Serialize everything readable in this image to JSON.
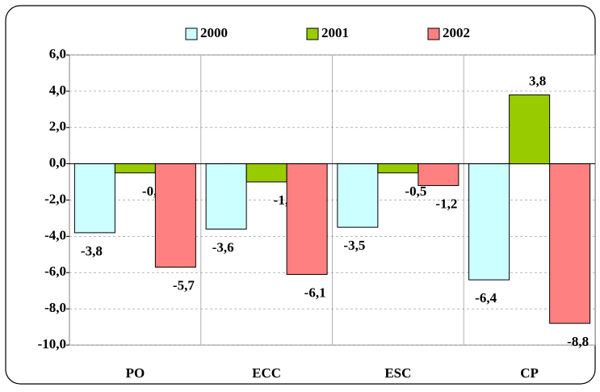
{
  "chart_data": {
    "type": "bar",
    "categories": [
      "PO",
      "ECC",
      "ESC",
      "CP"
    ],
    "series": [
      {
        "name": "2000",
        "color": "#ccffff",
        "values": [
          -3.8,
          -3.6,
          -3.5,
          -6.4
        ],
        "value_labels": [
          "-3,8",
          "-3,6",
          "-3,5",
          "-6,4"
        ]
      },
      {
        "name": "2001",
        "color": "#99cc00",
        "values": [
          -0.5,
          -1.0,
          -0.5,
          3.8
        ],
        "value_labels": [
          "-0,5",
          "-1,0",
          "-0,5",
          "3,8"
        ]
      },
      {
        "name": "2002",
        "color": "#ff8080",
        "values": [
          -5.7,
          -6.1,
          -1.2,
          -8.8
        ],
        "value_labels": [
          "-5,7",
          "-6,1",
          "-1,2",
          "-8,8"
        ]
      }
    ],
    "ylim": [
      -10,
      6
    ],
    "yticks": [
      {
        "value": -10,
        "label": "-10,0"
      },
      {
        "value": -8,
        "label": "-8,0"
      },
      {
        "value": -6,
        "label": "-6,0"
      },
      {
        "value": -4,
        "label": "-4,0"
      },
      {
        "value": -2,
        "label": "-2,0"
      },
      {
        "value": 0,
        "label": "0,0"
      },
      {
        "value": 2,
        "label": "2,0"
      },
      {
        "value": 4,
        "label": "4,0"
      },
      {
        "value": 6,
        "label": "6,0"
      }
    ],
    "grid": true,
    "legend": "top"
  }
}
